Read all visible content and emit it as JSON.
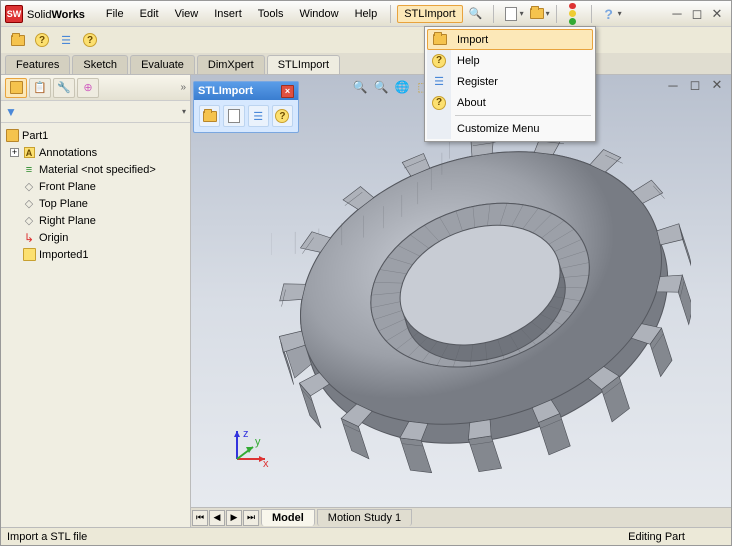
{
  "app": {
    "name_pre": "Solid",
    "name_bold": "Works"
  },
  "menu": {
    "file": "File",
    "edit": "Edit",
    "view": "View",
    "insert": "Insert",
    "tools": "Tools",
    "window": "Window",
    "help": "Help",
    "stlimport": "STLImport"
  },
  "ribbon": {
    "features": "Features",
    "sketch": "Sketch",
    "evaluate": "Evaluate",
    "dimxpert": "DimXpert",
    "stlimport": "STLImport"
  },
  "tree": {
    "root": "Part1",
    "annotations": "Annotations",
    "material": "Material <not specified>",
    "front": "Front Plane",
    "top": "Top Plane",
    "right": "Right Plane",
    "origin": "Origin",
    "imported": "Imported1"
  },
  "float": {
    "title": "STLImport"
  },
  "dropdown": {
    "import": "Import",
    "help": "Help",
    "register": "Register",
    "about": "About",
    "customize": "Customize Menu"
  },
  "bottom": {
    "model": "Model",
    "motion": "Motion Study 1"
  },
  "status": {
    "left": "Import a STL file",
    "right": "Editing Part"
  },
  "colors": {
    "gear": "#9ca0a8",
    "gear_edge": "#55585f"
  }
}
